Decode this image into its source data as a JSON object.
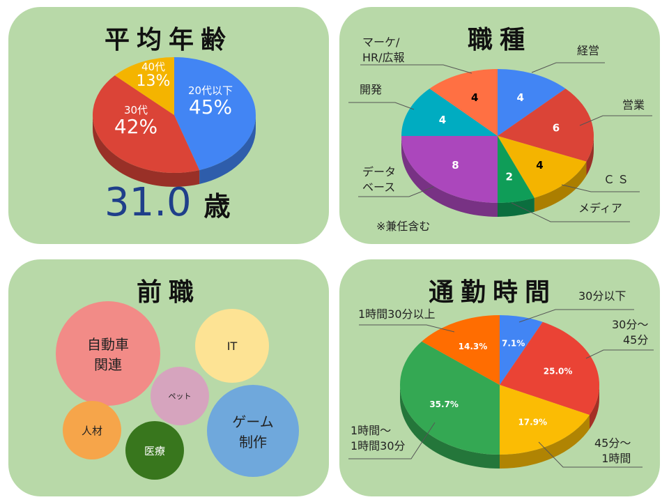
{
  "age_panel": {
    "title": "平均年齢",
    "average_value": "31.0",
    "average_unit": "歳"
  },
  "job_panel": {
    "title": "職種",
    "note": "※兼任含む"
  },
  "prev_panel": {
    "title": "前職",
    "bubbles": [
      "自動車\n関連",
      "IT",
      "ペット",
      "ゲーム\n制作",
      "人材",
      "医療"
    ]
  },
  "commute_panel": {
    "title": "通勤時間"
  },
  "chart_data": [
    {
      "type": "pie",
      "title": "平均年齢",
      "labels": [
        "20代以下",
        "30代",
        "40代"
      ],
      "values": [
        45,
        42,
        13
      ],
      "value_labels": [
        "45%",
        "42%",
        "13%"
      ],
      "colors": [
        "#4285f4",
        "#db4437",
        "#f4b400"
      ]
    },
    {
      "type": "pie",
      "title": "職種",
      "labels": [
        "経営",
        "営業",
        "ＣＳ",
        "メディア",
        "データ\nベース",
        "開発",
        "マーケ/\nHR/広報"
      ],
      "values": [
        4,
        6,
        4,
        2,
        8,
        4,
        4
      ],
      "value_labels": [
        "4",
        "6",
        "4",
        "2",
        "8",
        "4",
        "4"
      ],
      "colors": [
        "#4285f4",
        "#db4437",
        "#f4b400",
        "#0f9d58",
        "#ab47bc",
        "#00acc1",
        "#ff7043"
      ],
      "label_text_colors": [
        "#fff",
        "#fff",
        "#000",
        "#fff",
        "#fff",
        "#fff",
        "#000"
      ]
    },
    {
      "type": "pie",
      "title": "通勤時間",
      "labels": [
        "30分以下",
        "30分～\n45分",
        "45分～\n1時間",
        "1時間～\n1時間30分",
        "1時間30分以上"
      ],
      "values": [
        7.1,
        25.0,
        17.9,
        35.7,
        14.3
      ],
      "value_labels": [
        "7.1%",
        "25.0%",
        "17.9%",
        "35.7%",
        "14.3%"
      ],
      "colors": [
        "#4285f4",
        "#ea4335",
        "#fbbc04",
        "#34a853",
        "#ff6d01"
      ],
      "label_text_colors": [
        "#fff",
        "#fff",
        "#fff",
        "#fff",
        "#fff"
      ]
    }
  ]
}
